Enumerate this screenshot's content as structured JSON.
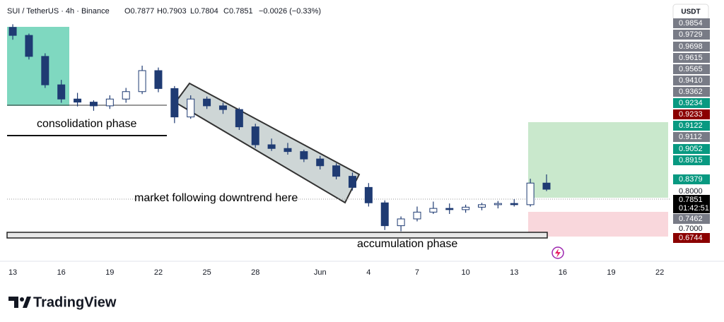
{
  "header": {
    "symbol": "SUI / TetherUS · 4h · Binance",
    "open": "O0.7877",
    "high": "H0.7903",
    "low": "L0.7804",
    "close": "C0.7851",
    "change": "−0.0026 (−0.33%)"
  },
  "currency": "USDT",
  "chart_data": {
    "type": "candlestick",
    "x": [
      0,
      1,
      2,
      3,
      4,
      5,
      6,
      7,
      8,
      9,
      10,
      11,
      12,
      13,
      14,
      15,
      16,
      17,
      18,
      19,
      20,
      21,
      22,
      23,
      24,
      25,
      26,
      27,
      28,
      29,
      30,
      31,
      32,
      33
    ],
    "open": [
      0.99,
      0.977,
      0.943,
      0.897,
      0.874,
      0.869,
      0.863,
      0.874,
      0.886,
      0.92,
      0.891,
      0.845,
      0.874,
      0.863,
      0.857,
      0.829,
      0.8,
      0.794,
      0.789,
      0.777,
      0.766,
      0.749,
      0.731,
      0.706,
      0.669,
      0.68,
      0.691,
      0.697,
      0.695,
      0.699,
      0.703,
      0.705,
      0.703,
      0.738
    ],
    "high": [
      0.995,
      0.98,
      0.948,
      0.905,
      0.884,
      0.872,
      0.88,
      0.892,
      0.928,
      0.925,
      0.895,
      0.88,
      0.878,
      0.868,
      0.86,
      0.834,
      0.81,
      0.803,
      0.792,
      0.782,
      0.77,
      0.755,
      0.738,
      0.71,
      0.684,
      0.7,
      0.708,
      0.705,
      0.703,
      0.706,
      0.709,
      0.712,
      0.745,
      0.752
    ],
    "low": [
      0.97,
      0.938,
      0.892,
      0.868,
      0.862,
      0.855,
      0.858,
      0.868,
      0.882,
      0.885,
      0.835,
      0.842,
      0.858,
      0.85,
      0.824,
      0.795,
      0.79,
      0.784,
      0.772,
      0.76,
      0.744,
      0.726,
      0.7,
      0.662,
      0.66,
      0.676,
      0.688,
      0.688,
      0.69,
      0.694,
      0.697,
      0.7,
      0.7,
      0.725
    ],
    "close": [
      0.977,
      0.943,
      0.897,
      0.874,
      0.869,
      0.863,
      0.874,
      0.886,
      0.92,
      0.891,
      0.845,
      0.874,
      0.863,
      0.857,
      0.829,
      0.8,
      0.794,
      0.789,
      0.777,
      0.766,
      0.749,
      0.731,
      0.706,
      0.669,
      0.68,
      0.691,
      0.697,
      0.695,
      0.699,
      0.703,
      0.705,
      0.703,
      0.738,
      0.728
    ],
    "up_color": "#ffffff",
    "down_color": "#1f3b73",
    "xlim": [
      -0.44,
      40.65
    ],
    "ylim": [
      0.64,
      1.0
    ],
    "xticks": [
      {
        "value": 0,
        "label": "13"
      },
      {
        "value": 3,
        "label": "16"
      },
      {
        "value": 6,
        "label": "19"
      },
      {
        "value": 9,
        "label": "22"
      },
      {
        "value": 12,
        "label": "25"
      },
      {
        "value": 15,
        "label": "28"
      },
      {
        "value": 19,
        "label": "Jun"
      },
      {
        "value": 22,
        "label": "4"
      },
      {
        "value": 25,
        "label": "7"
      },
      {
        "value": 28,
        "label": "10"
      },
      {
        "value": 31,
        "label": "13"
      },
      {
        "value": 34,
        "label": "16"
      },
      {
        "value": 37,
        "label": "19"
      },
      {
        "value": 40,
        "label": "22"
      }
    ],
    "annotations": [
      "consolidation phase",
      "market following downtrend here",
      "accumulation phase"
    ]
  },
  "price_tags": [
    {
      "label": "0.9854",
      "color": "#787b86"
    },
    {
      "label": "0.9729",
      "color": "#787b86"
    },
    {
      "label": "0.9698",
      "color": "#787b86"
    },
    {
      "label": "0.9615",
      "color": "#787b86"
    },
    {
      "label": "0.9565",
      "color": "#787b86"
    },
    {
      "label": "0.9410",
      "color": "#787b86"
    },
    {
      "label": "0.9362",
      "color": "#787b86"
    },
    {
      "label": "0.9234",
      "color": "#089981"
    },
    {
      "label": "0.9233",
      "color": "#8b0000"
    },
    {
      "label": "0.9122",
      "color": "#089981"
    },
    {
      "label": "0.9112",
      "color": "#787b86"
    },
    {
      "label": "0.9052",
      "color": "#089981"
    },
    {
      "label": "0.8915",
      "color": "#089981"
    },
    {
      "label": "0.8379",
      "color": "#089981"
    },
    {
      "label": "0.8000",
      "color": "#ffffff"
    },
    {
      "label": "0.7851",
      "color": "#000000"
    },
    {
      "label": "0.7462",
      "color": "#787b86"
    },
    {
      "label": "0.7000",
      "color": "#ffffff"
    },
    {
      "label": "0.6744",
      "color": "#8b0000"
    }
  ],
  "countdown": "01:42:51",
  "logo": "TradingView"
}
